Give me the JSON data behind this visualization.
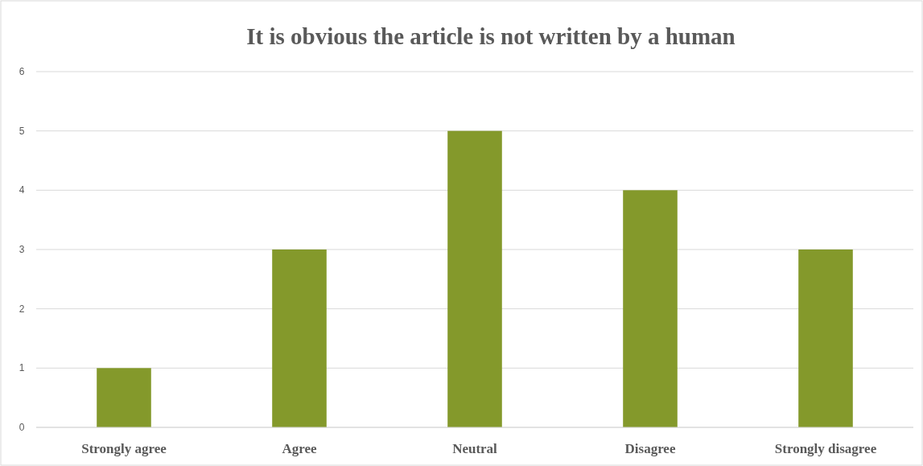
{
  "chart_data": {
    "type": "bar",
    "title": "It is obvious the article is not written by a human",
    "categories": [
      "Strongly agree",
      "Agree",
      "Neutral",
      "Disagree",
      "Strongly disagree"
    ],
    "values": [
      1,
      3,
      5,
      4,
      3
    ],
    "color": "#84992b",
    "ylim": [
      0,
      6
    ],
    "yticks": [
      0,
      1,
      2,
      3,
      4,
      5,
      6
    ],
    "grid": "y"
  }
}
